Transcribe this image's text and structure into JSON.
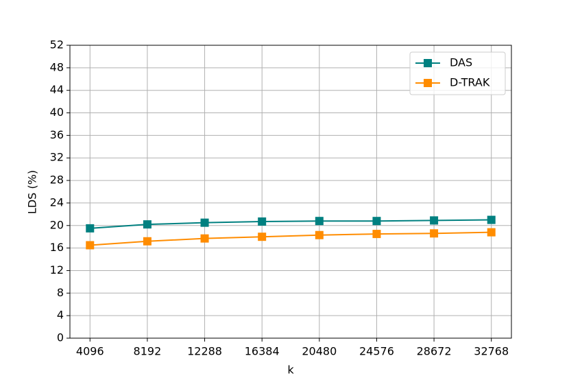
{
  "chart_data": {
    "type": "line",
    "x": [
      4096,
      8192,
      12288,
      16384,
      20480,
      24576,
      28672,
      32768
    ],
    "xlabel": "k",
    "ylabel": "LDS (%)",
    "series": [
      {
        "name": "DAS",
        "color": "#008080",
        "values": [
          19.5,
          20.2,
          20.5,
          20.7,
          20.8,
          20.8,
          20.9,
          21.0
        ]
      },
      {
        "name": "D-TRAK",
        "color": "#ff8c00",
        "values": [
          16.5,
          17.2,
          17.7,
          18.0,
          18.3,
          18.5,
          18.6,
          18.8
        ]
      }
    ],
    "xlim": [
      2662.4,
      34201.6
    ],
    "xticks": [
      4096,
      8192,
      12288,
      16384,
      20480,
      24576,
      28672,
      32768
    ],
    "ylim": [
      0,
      52
    ],
    "yticks": [
      0,
      4,
      8,
      12,
      16,
      20,
      24,
      28,
      32,
      36,
      40,
      44,
      48,
      52
    ],
    "grid": true,
    "legend": "upper right"
  }
}
